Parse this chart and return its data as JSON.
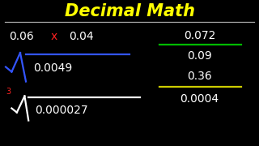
{
  "title": "Decimal Math",
  "title_color": "#FFFF00",
  "background_color": "#000000",
  "text_color": "#FFFFFF",
  "line1_left": "0.06",
  "line1_x": "x",
  "line1_x_color": "#FF2222",
  "line1_right": "0.04",
  "sqrt_number": "0.0049",
  "sqrt_color": "#3355FF",
  "cbrt_number": "0.000027",
  "cbrt_3_color": "#FF2222",
  "div1_numerator": "0.072",
  "div1_denominator": "0.09",
  "div1_line_color": "#00BB00",
  "div2_numerator": "0.36",
  "div2_denominator": "0.0004",
  "div2_line_color": "#CCCC00",
  "underline_color": "#AAAAAA",
  "xlim": [
    0,
    10
  ],
  "ylim": [
    0,
    6
  ]
}
